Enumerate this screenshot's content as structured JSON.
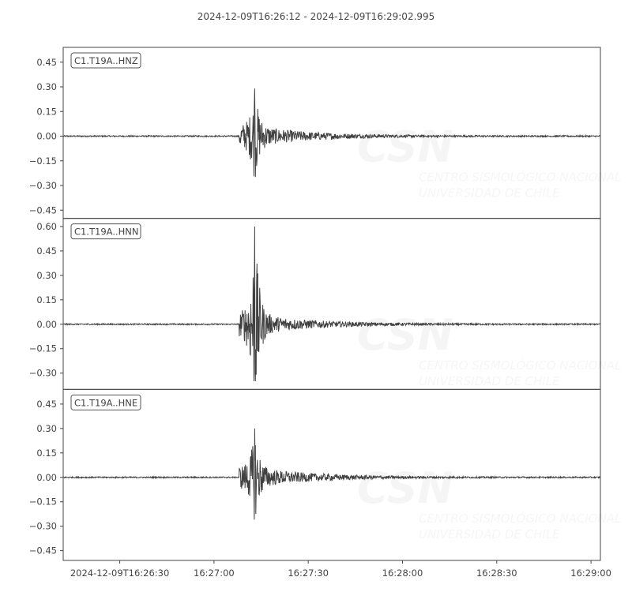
{
  "chart_data": {
    "type": "line",
    "title": "2024-12-09T16:26:12  -  2024-12-09T16:29:02.995",
    "xlim": [
      "2024-12-09T16:26:12",
      "2024-12-09T16:29:02.995"
    ],
    "x_ticks": [
      {
        "time": "2024-12-09T16:26:30",
        "label": "2024-12-09T16:26:30"
      },
      {
        "time": "2024-12-09T16:27:00",
        "label": "16:27:00"
      },
      {
        "time": "2024-12-09T16:27:30",
        "label": "16:27:30"
      },
      {
        "time": "2024-12-09T16:28:00",
        "label": "16:28:00"
      },
      {
        "time": "2024-12-09T16:28:30",
        "label": "16:28:30"
      },
      {
        "time": "2024-12-09T16:29:00",
        "label": "16:29:00"
      }
    ],
    "grid": false,
    "line_color": "#404040",
    "event": {
      "onset": "2024-12-09T16:27:08",
      "peak": "2024-12-09T16:27:13"
    },
    "series": [
      {
        "name": "C1.T19A..HNZ",
        "ylim": [
          -0.5,
          0.54
        ],
        "yticks": [
          -0.45,
          -0.3,
          -0.15,
          0.0,
          0.15,
          0.3,
          0.45
        ],
        "tick_labels": [
          "−0.45",
          "−0.30",
          "−0.15",
          "0.00",
          "0.15",
          "0.30",
          "0.45"
        ],
        "max": 0.29,
        "min": -0.26
      },
      {
        "name": "C1.T19A..HNN",
        "ylim": [
          -0.4,
          0.65
        ],
        "yticks": [
          -0.3,
          -0.15,
          0.0,
          0.15,
          0.3,
          0.45,
          0.6
        ],
        "tick_labels": [
          "−0.30",
          "−0.15",
          "0.00",
          "0.15",
          "0.30",
          "0.45",
          "0.60"
        ],
        "max": 0.6,
        "min": -0.35
      },
      {
        "name": "C1.T19A..HNE",
        "ylim": [
          -0.51,
          0.54
        ],
        "yticks": [
          -0.45,
          -0.3,
          -0.15,
          0.0,
          0.15,
          0.3,
          0.45
        ],
        "tick_labels": [
          "−0.45",
          "−0.30",
          "−0.15",
          "0.00",
          "0.15",
          "0.30",
          "0.45"
        ],
        "max": 0.3,
        "min": -0.26
      }
    ]
  },
  "watermark": {
    "logo": "CSN",
    "line1": "CENTRO SISMOLÓGICO NACIONAL",
    "line2": "UNIVERSIDAD DE CHILE"
  }
}
